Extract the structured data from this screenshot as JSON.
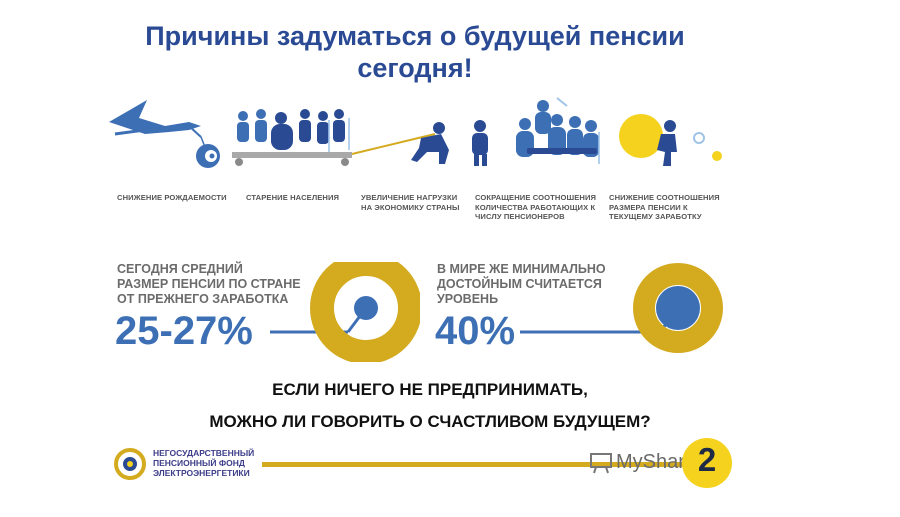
{
  "title": {
    "line1": "Причины задуматься о будущей пенсии",
    "line2": "сегодня!"
  },
  "reasons": [
    {
      "label": "СНИЖЕНИЕ РОЖДАЕМОСТИ",
      "icon": "stork-icon"
    },
    {
      "label": "СТАРЕНИЕ НАСЕЛЕНИЯ",
      "icon": "elderly-people-icon"
    },
    {
      "label": "УВЕЛИЧЕНИЕ НАГРУЗКИ НА ЭКОНОМИКУ СТРАНЫ",
      "icon": "person-pulling-load-icon"
    },
    {
      "label": "СОКРАЩЕНИЕ СООТНОШЕНИЯ КОЛИЧЕСТВА РАБОТАЮЩИХ К ЧИСЛУ ПЕНСИОНЕРОВ",
      "icon": "workers-pensioners-icon"
    },
    {
      "label": "СНИЖЕНИЕ СООТНОШЕНИЯ РАЗМЕРА ПЕНСИИ К ТЕКУЩЕМУ ЗАРАБОТКУ",
      "icon": "person-pushing-coin-icon"
    }
  ],
  "stats": [
    {
      "text": [
        "СЕГОДНЯ СРЕДНИЙ",
        "РАЗМЕР ПЕНСИИ ПО СТРАНЕ",
        "ОТ ПРЕЖНЕГО ЗАРАБОТКА"
      ],
      "value": "25-27%"
    },
    {
      "text": [
        "В МИРЕ ЖЕ МИНИМАЛЬНО",
        "ДОСТОЙНЫМ СЧИТАЕТСЯ",
        "УРОВЕНЬ"
      ],
      "value": "40%"
    }
  ],
  "question": {
    "line1": "ЕСЛИ НИЧЕГО НЕ ПРЕДПРИНИМАТЬ,",
    "line2": "МОЖНО ЛИ ГОВОРИТЬ О СЧАСТЛИВОМ БУДУЩЕМ?"
  },
  "logo": {
    "line1": "НЕГОСУДАРСТВЕННЫЙ",
    "line2": "ПЕНСИОННЫЙ ФОНД",
    "line3": "ЭЛЕКТРОЭНЕРГЕТИКИ"
  },
  "watermark": "MyShared",
  "page_number": "2",
  "colors": {
    "brand_blue": "#2a4a94",
    "accent_blue": "#3d6fb5",
    "gold": "#d4aa1f",
    "yellow": "#f4d21e"
  }
}
